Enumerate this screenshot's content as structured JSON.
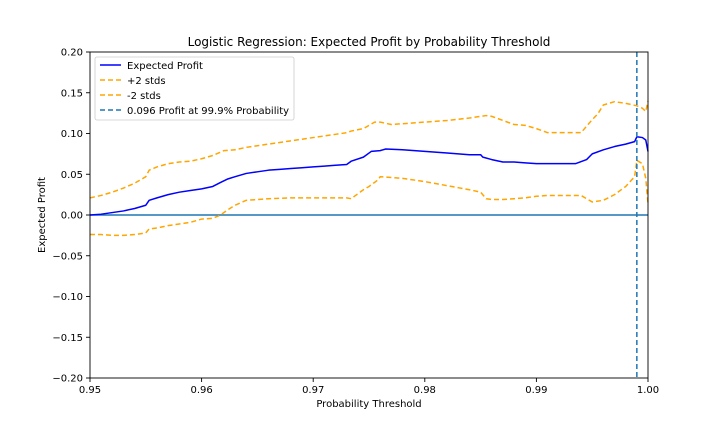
{
  "chart_data": {
    "type": "line",
    "title": "Logistic Regression: Expected Profit by Probability Threshold",
    "xlabel": "Probability Threshold",
    "ylabel": "Expected Profit",
    "xlim": [
      0.95,
      1.0
    ],
    "ylim": [
      -0.2,
      0.2
    ],
    "xticks": [
      0.95,
      0.96,
      0.97,
      0.98,
      0.99,
      1.0
    ],
    "xtick_labels": [
      "0.95",
      "0.96",
      "0.97",
      "0.98",
      "0.99",
      "1.00"
    ],
    "yticks": [
      -0.2,
      -0.15,
      -0.1,
      -0.05,
      0.0,
      0.05,
      0.1,
      0.15,
      0.2
    ],
    "ytick_labels": [
      "−0.20",
      "−0.15",
      "−0.10",
      "−0.05",
      "0.00",
      "0.05",
      "0.10",
      "0.15",
      "0.20"
    ],
    "grid": false,
    "legend_position": "top-left",
    "colors": {
      "expected": "#0000ff",
      "band": "#ffa500",
      "hline": "#1f77b4",
      "vline": "#1f77b4"
    },
    "series": [
      {
        "name": "Expected Profit",
        "style": "solid",
        "color": "#0000ff",
        "x": [
          0.95,
          0.951,
          0.952,
          0.953,
          0.954,
          0.955,
          0.9553,
          0.956,
          0.957,
          0.958,
          0.959,
          0.96,
          0.961,
          0.9617,
          0.9623,
          0.963,
          0.964,
          0.965,
          0.966,
          0.967,
          0.968,
          0.969,
          0.97,
          0.971,
          0.972,
          0.973,
          0.9734,
          0.9745,
          0.9752,
          0.976,
          0.9765,
          0.978,
          0.98,
          0.982,
          0.984,
          0.985,
          0.9852,
          0.986,
          0.987,
          0.988,
          0.989,
          0.99,
          0.991,
          0.992,
          0.9935,
          0.9945,
          0.995,
          0.996,
          0.997,
          0.998,
          0.9988,
          0.999,
          0.9995,
          0.9998,
          1.0
        ],
        "y": [
          0.0,
          0.001,
          0.003,
          0.005,
          0.008,
          0.012,
          0.018,
          0.021,
          0.025,
          0.028,
          0.03,
          0.032,
          0.035,
          0.04,
          0.044,
          0.047,
          0.051,
          0.053,
          0.055,
          0.056,
          0.057,
          0.058,
          0.059,
          0.06,
          0.061,
          0.062,
          0.066,
          0.071,
          0.078,
          0.079,
          0.081,
          0.08,
          0.078,
          0.076,
          0.074,
          0.074,
          0.071,
          0.068,
          0.065,
          0.065,
          0.064,
          0.063,
          0.063,
          0.063,
          0.063,
          0.068,
          0.075,
          0.08,
          0.084,
          0.087,
          0.09,
          0.096,
          0.095,
          0.092,
          0.078
        ]
      },
      {
        "name": "+2 stds",
        "style": "dashed",
        "color": "#ffa500",
        "x": [
          0.95,
          0.951,
          0.952,
          0.953,
          0.954,
          0.955,
          0.9553,
          0.956,
          0.957,
          0.958,
          0.959,
          0.96,
          0.961,
          0.962,
          0.963,
          0.964,
          0.965,
          0.966,
          0.967,
          0.968,
          0.969,
          0.97,
          0.971,
          0.972,
          0.973,
          0.9734,
          0.9745,
          0.9755,
          0.976,
          0.977,
          0.978,
          0.98,
          0.982,
          0.984,
          0.985,
          0.9855,
          0.986,
          0.987,
          0.988,
          0.989,
          0.99,
          0.991,
          0.992,
          0.993,
          0.994,
          0.995,
          0.9955,
          0.996,
          0.997,
          0.998,
          0.999,
          0.9995,
          0.9998,
          1.0
        ],
        "y": [
          0.021,
          0.024,
          0.028,
          0.033,
          0.039,
          0.047,
          0.055,
          0.059,
          0.063,
          0.065,
          0.066,
          0.069,
          0.073,
          0.079,
          0.08,
          0.083,
          0.085,
          0.087,
          0.089,
          0.091,
          0.093,
          0.095,
          0.097,
          0.099,
          0.101,
          0.103,
          0.106,
          0.114,
          0.114,
          0.111,
          0.112,
          0.114,
          0.116,
          0.119,
          0.121,
          0.122,
          0.121,
          0.116,
          0.111,
          0.11,
          0.106,
          0.101,
          0.101,
          0.101,
          0.101,
          0.117,
          0.124,
          0.135,
          0.139,
          0.137,
          0.134,
          0.131,
          0.127,
          0.14
        ]
      },
      {
        "name": "-2 stds",
        "style": "dashed",
        "color": "#ffa500",
        "x": [
          0.95,
          0.951,
          0.952,
          0.953,
          0.954,
          0.955,
          0.9553,
          0.956,
          0.957,
          0.958,
          0.959,
          0.96,
          0.961,
          0.9617,
          0.9623,
          0.963,
          0.964,
          0.966,
          0.968,
          0.97,
          0.971,
          0.972,
          0.973,
          0.9734,
          0.9745,
          0.975,
          0.9758,
          0.976,
          0.978,
          0.98,
          0.982,
          0.984,
          0.985,
          0.9855,
          0.986,
          0.987,
          0.988,
          0.989,
          0.99,
          0.991,
          0.992,
          0.993,
          0.994,
          0.995,
          0.996,
          0.997,
          0.998,
          0.9988,
          0.999,
          0.9995,
          0.9998,
          1.0
        ],
        "y": [
          -0.024,
          -0.024,
          -0.025,
          -0.025,
          -0.024,
          -0.022,
          -0.017,
          -0.016,
          -0.013,
          -0.011,
          -0.009,
          -0.005,
          -0.004,
          0.0,
          0.006,
          0.012,
          0.018,
          0.02,
          0.021,
          0.021,
          0.021,
          0.021,
          0.021,
          0.02,
          0.031,
          0.035,
          0.043,
          0.047,
          0.045,
          0.041,
          0.036,
          0.031,
          0.028,
          0.02,
          0.019,
          0.019,
          0.02,
          0.021,
          0.023,
          0.024,
          0.024,
          0.024,
          0.024,
          0.016,
          0.018,
          0.025,
          0.035,
          0.047,
          0.067,
          0.063,
          0.045,
          0.014
        ]
      }
    ],
    "hline": {
      "y": 0.0,
      "color": "#1f77b4"
    },
    "vline": {
      "x": 0.999,
      "name": "0.096 Profit at 99.9% Probability",
      "style": "dashed",
      "color": "#1f77b4"
    }
  }
}
